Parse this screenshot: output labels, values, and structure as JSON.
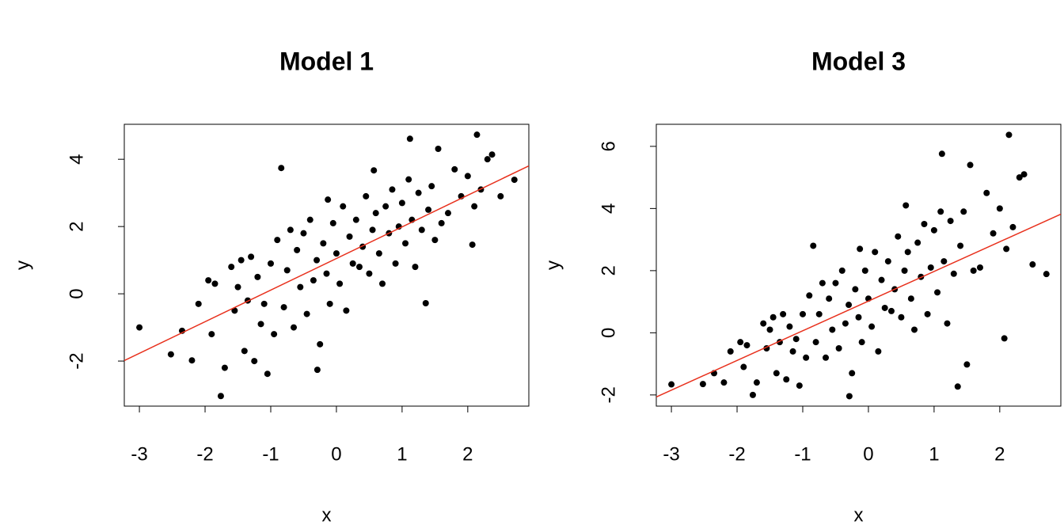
{
  "chart_data": [
    {
      "type": "scatter",
      "title": "Model 1",
      "xlabel": "x",
      "ylabel": "y",
      "xlim": [
        -3.23,
        2.93
      ],
      "ylim": [
        -3.34,
        5.04
      ],
      "xticks": [
        -3,
        -2,
        -1,
        0,
        1,
        2
      ],
      "yticks": [
        -2,
        0,
        2,
        4
      ],
      "x": [
        -3.0,
        -2.52,
        -2.35,
        -2.2,
        -2.1,
        -1.95,
        -1.9,
        -1.85,
        -1.76,
        -1.7,
        -1.6,
        -1.55,
        -1.5,
        -1.45,
        -1.4,
        -1.35,
        -1.3,
        -1.25,
        -1.2,
        -1.15,
        -1.1,
        -1.05,
        -1.0,
        -0.95,
        -0.9,
        -0.84,
        -0.8,
        -0.75,
        -0.7,
        -0.65,
        -0.6,
        -0.55,
        -0.5,
        -0.45,
        -0.4,
        -0.35,
        -0.3,
        -0.29,
        -0.25,
        -0.2,
        -0.15,
        -0.13,
        -0.1,
        -0.05,
        0.0,
        0.05,
        0.1,
        0.15,
        0.2,
        0.25,
        0.3,
        0.35,
        0.4,
        0.45,
        0.5,
        0.55,
        0.57,
        0.6,
        0.65,
        0.7,
        0.75,
        0.8,
        0.85,
        0.9,
        0.95,
        1.0,
        1.05,
        1.1,
        1.12,
        1.15,
        1.2,
        1.25,
        1.3,
        1.36,
        1.4,
        1.45,
        1.5,
        1.55,
        1.6,
        1.7,
        1.8,
        1.9,
        2.0,
        2.07,
        2.1,
        2.14,
        2.2,
        2.3,
        2.37,
        2.5,
        2.71
      ],
      "values": [
        -1.0,
        -1.8,
        -1.1,
        -1.98,
        -0.3,
        0.4,
        -1.2,
        0.3,
        -3.04,
        -2.2,
        0.8,
        -0.5,
        0.2,
        1.0,
        -1.7,
        -0.2,
        1.1,
        -2.0,
        0.5,
        -0.9,
        -0.3,
        -2.38,
        0.9,
        -1.2,
        1.6,
        3.74,
        -0.4,
        0.7,
        1.9,
        -1.0,
        1.3,
        0.2,
        1.8,
        -0.6,
        2.2,
        0.4,
        1.0,
        -2.26,
        -1.5,
        1.5,
        0.6,
        2.8,
        -0.3,
        2.1,
        1.2,
        0.3,
        2.6,
        -0.5,
        1.7,
        0.9,
        2.2,
        0.8,
        1.4,
        2.9,
        0.6,
        1.9,
        3.67,
        2.4,
        1.2,
        0.3,
        2.6,
        1.8,
        3.1,
        0.9,
        2.0,
        2.7,
        1.5,
        3.4,
        4.61,
        2.2,
        0.8,
        3.0,
        1.9,
        -0.28,
        2.5,
        3.2,
        1.6,
        4.31,
        2.1,
        2.4,
        3.7,
        2.9,
        3.5,
        1.46,
        2.6,
        4.73,
        3.1,
        4.0,
        4.14,
        2.9,
        3.39
      ],
      "color": "#000000",
      "line": {
        "intercept": 1.05,
        "slope": 0.94,
        "color": "#e8301c"
      }
    },
    {
      "type": "scatter",
      "title": "Model 3",
      "xlabel": "x",
      "ylabel": "y",
      "xlim": [
        -3.23,
        2.93
      ],
      "ylim": [
        -2.36,
        6.71
      ],
      "xticks": [
        -3,
        -2,
        -1,
        0,
        1,
        2
      ],
      "yticks": [
        -2,
        0,
        2,
        4,
        6
      ],
      "x": [
        -3.0,
        -2.52,
        -2.35,
        -2.2,
        -2.1,
        -1.95,
        -1.9,
        -1.85,
        -1.76,
        -1.7,
        -1.6,
        -1.55,
        -1.5,
        -1.45,
        -1.4,
        -1.35,
        -1.3,
        -1.25,
        -1.2,
        -1.15,
        -1.1,
        -1.05,
        -1.0,
        -0.95,
        -0.9,
        -0.84,
        -0.8,
        -0.75,
        -0.7,
        -0.65,
        -0.6,
        -0.55,
        -0.5,
        -0.45,
        -0.4,
        -0.35,
        -0.3,
        -0.29,
        -0.25,
        -0.2,
        -0.15,
        -0.13,
        -0.1,
        -0.05,
        0.0,
        0.05,
        0.1,
        0.15,
        0.2,
        0.25,
        0.3,
        0.35,
        0.4,
        0.45,
        0.5,
        0.55,
        0.57,
        0.6,
        0.65,
        0.7,
        0.75,
        0.8,
        0.85,
        0.9,
        0.95,
        1.0,
        1.05,
        1.1,
        1.12,
        1.15,
        1.2,
        1.25,
        1.3,
        1.36,
        1.4,
        1.45,
        1.5,
        1.55,
        1.6,
        1.7,
        1.8,
        1.9,
        2.0,
        2.07,
        2.1,
        2.14,
        2.2,
        2.3,
        2.37,
        2.5,
        2.71
      ],
      "values": [
        -1.66,
        -1.65,
        -1.3,
        -1.6,
        -0.6,
        -0.3,
        -1.1,
        -0.4,
        -2.0,
        -1.6,
        0.3,
        -0.5,
        0.1,
        0.5,
        -1.3,
        -0.3,
        0.6,
        -1.5,
        0.2,
        -0.6,
        -0.2,
        -1.7,
        0.6,
        -0.8,
        1.2,
        2.8,
        -0.3,
        0.6,
        1.6,
        -0.8,
        1.1,
        0.1,
        1.6,
        -0.5,
        2.0,
        0.3,
        0.9,
        -2.04,
        -1.3,
        1.4,
        0.5,
        2.7,
        -0.3,
        2.0,
        1.1,
        0.2,
        2.6,
        -0.6,
        1.7,
        0.8,
        2.3,
        0.7,
        1.4,
        3.1,
        0.5,
        2.0,
        4.1,
        2.6,
        1.1,
        0.1,
        2.9,
        1.8,
        3.5,
        0.6,
        2.1,
        3.3,
        1.3,
        3.9,
        5.76,
        2.3,
        0.3,
        3.6,
        1.9,
        -1.73,
        2.8,
        3.9,
        -1.02,
        5.4,
        2.0,
        2.1,
        4.5,
        3.2,
        4.0,
        -0.18,
        2.7,
        6.37,
        3.4,
        5.0,
        5.1,
        2.2,
        1.89
      ],
      "color": "#000000",
      "line": {
        "intercept": 1.02,
        "slope": 0.955,
        "color": "#e8301c"
      }
    }
  ]
}
